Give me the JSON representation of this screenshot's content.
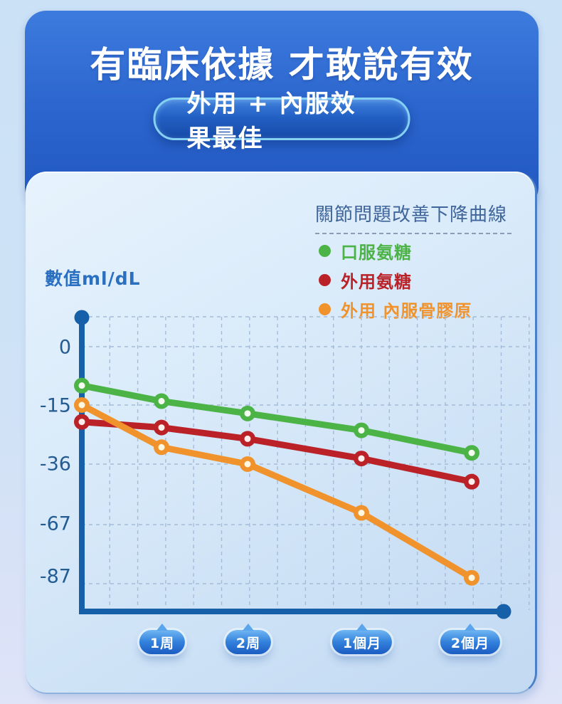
{
  "header": {
    "title": "有臨床依據 才敢說有效",
    "subtitle": "外用 + 內服效果最佳"
  },
  "chart_data": {
    "type": "line",
    "title": "關節問題改善下降曲線",
    "ylabel": "數值ml/dL",
    "x_labels": [
      "1周",
      "2周",
      "1個月",
      "2個月"
    ],
    "x_includes_origin_point": true,
    "y_tick_labels": [
      "0",
      "-15",
      "-36",
      "-67",
      "-87"
    ],
    "y_ticks": [
      0,
      -15,
      -36,
      -67,
      -87
    ],
    "grid": true,
    "legend_position": "top-right",
    "axis_color": "#1560a8",
    "series": [
      {
        "name": "口服氨糖",
        "color": "#4cb347",
        "marker_center": "#f4fcef",
        "values": [
          -10,
          -14,
          -18,
          -24,
          -32
        ]
      },
      {
        "name": "外用氨糖",
        "color": "#bb2228",
        "marker_center": "#ffefec",
        "values": [
          -21,
          -23,
          -27,
          -34,
          -45
        ]
      },
      {
        "name": "外用 內服骨膠原",
        "color": "#f0932d",
        "marker_center": "#fff7e0",
        "values": [
          -15,
          -30,
          -36,
          -61,
          -85
        ]
      }
    ]
  }
}
